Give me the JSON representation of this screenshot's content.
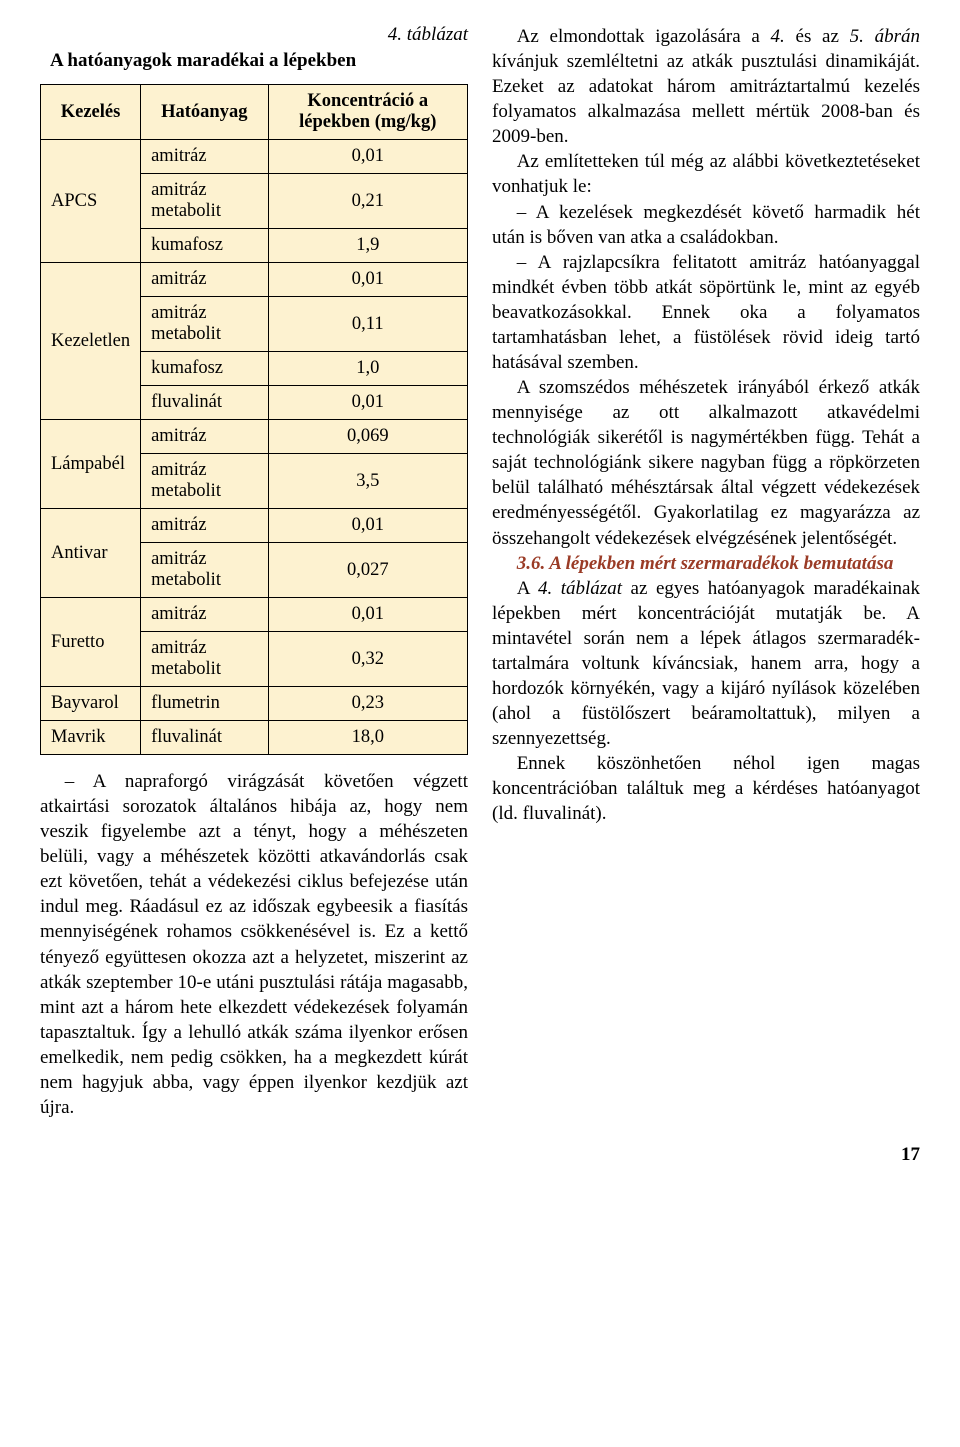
{
  "table": {
    "caption_above": "4. táblázat",
    "title": "A hatóanyagok maradékai a lépekben",
    "headers": {
      "h1": "Kezelés",
      "h2": "Hatóanyag",
      "h3": "Koncentráció a lépekben (mg/kg)"
    },
    "groups": [
      {
        "treatment": "APCS",
        "rows": [
          {
            "substance": "amitráz",
            "value": "0,01"
          },
          {
            "substance": "amitráz metabolit",
            "value": "0,21"
          },
          {
            "substance": "kumafosz",
            "value": "1,9"
          }
        ]
      },
      {
        "treatment": "Kezeletlen",
        "rows": [
          {
            "substance": "amitráz",
            "value": "0,01"
          },
          {
            "substance": "amitráz metabolit",
            "value": "0,11"
          },
          {
            "substance": "kumafosz",
            "value": "1,0"
          },
          {
            "substance": "fluvalinát",
            "value": "0,01"
          }
        ]
      },
      {
        "treatment": "Lámpabél",
        "rows": [
          {
            "substance": "amitráz",
            "value": "0,069"
          },
          {
            "substance": "amitráz metabolit",
            "value": "3,5"
          }
        ]
      },
      {
        "treatment": "Antivar",
        "rows": [
          {
            "substance": "amitráz",
            "value": "0,01"
          },
          {
            "substance": "amitráz metabolit",
            "value": "0,027"
          }
        ]
      },
      {
        "treatment": "Furetto",
        "rows": [
          {
            "substance": "amitráz",
            "value": "0,01"
          },
          {
            "substance": "amitráz metabolit",
            "value": "0,32"
          }
        ]
      },
      {
        "treatment": "Bayvarol",
        "rows": [
          {
            "substance": "flumetrin",
            "value": "0,23"
          }
        ]
      },
      {
        "treatment": "Mavrik",
        "rows": [
          {
            "substance": "fluvalinát",
            "value": "18,0"
          }
        ]
      }
    ],
    "colors": {
      "bg": "#fdf2d0",
      "border": "#000000"
    }
  },
  "left_text": "– A napraforgó virágzását követően végzett atkairtási sorozatok általános hibája az, hogy nem veszik figyelembe azt a tényt, hogy a méhészeten belüli, vagy a méhészetek közötti atkavándorlás csak ezt követően, tehát a védekezési ciklus befejezése után indul meg. Ráadásul ez az időszak egybeesik a fiasítás mennyiségének rohamos csökkenésével is. Ez a kettő tényező együttesen okozza azt a helyzetet, miszerint az atkák szeptember 10-e utáni pusztulási rátája magasabb, mint azt a három hete elkezdett védekezések folyamán tapasztaltuk. Így a lehulló atkák száma ilyenkor erősen emelkedik, nem pedig csökken, ha a megkezdett kúrát nem hagyjuk abba, vagy éppen ilyenkor kezdjük azt újra.",
  "right_paragraphs": [
    "Az elmondottak igazolására a <i>4.</i> és az <i>5. ábrán</i> kívánjuk szemléltetni az atkák pusztulási dinamikáját. Ezeket az adatokat három amitráztartalmú kezelés folyamatos alkalmazása mellett mértük 2008-ban és 2009-ben.",
    "Az említetteken túl még az alábbi következtetéseket vonhatjuk le:",
    "– A kezelések megkezdését követő harmadik hét után is bőven van atka a családokban.",
    "– A rajzlapcsíkra felitatott amitráz hatóanyaggal mindkét évben több atkát söpörtünk le, mint az egyéb beavatkozásokkal. Ennek oka a folyamatos tartamhatásban lehet, a füstölések rövid ideig tartó hatásával szemben.",
    "A szomszédos méhészetek irányából érkező atkák mennyisége az ott alkalmazott atkavédelmi technológiák sikerétől is nagymértékben függ. Tehát a saját technológiánk sikere nagyban függ a röpkörzeten belül található méhésztársak által végzett védekezések eredményességétől. Gyakorlatilag ez magyarázza az összehangolt védekezések elvégzésének jelentőségét."
  ],
  "section_head": "3.6. A lépekben mért szermaradékok bemutatása",
  "right_paragraphs_after": [
    "A <i>4. táblázat</i> az egyes hatóanyagok maradékainak lépekben mért koncentrációját mutatják be. A mintavétel során nem a lépek átlagos szermaradék-tartalmára voltunk kíváncsiak, hanem arra, hogy a hordozók környékén, vagy a kijáró nyílások közelében (ahol a füstölőszert beáramoltattuk), milyen a szennyezettség.",
    "Ennek köszönhetően néhol igen magas koncentrációban találtuk meg a kérdéses hatóanyagot (ld. fluvalinát)."
  ],
  "page_number": "17"
}
